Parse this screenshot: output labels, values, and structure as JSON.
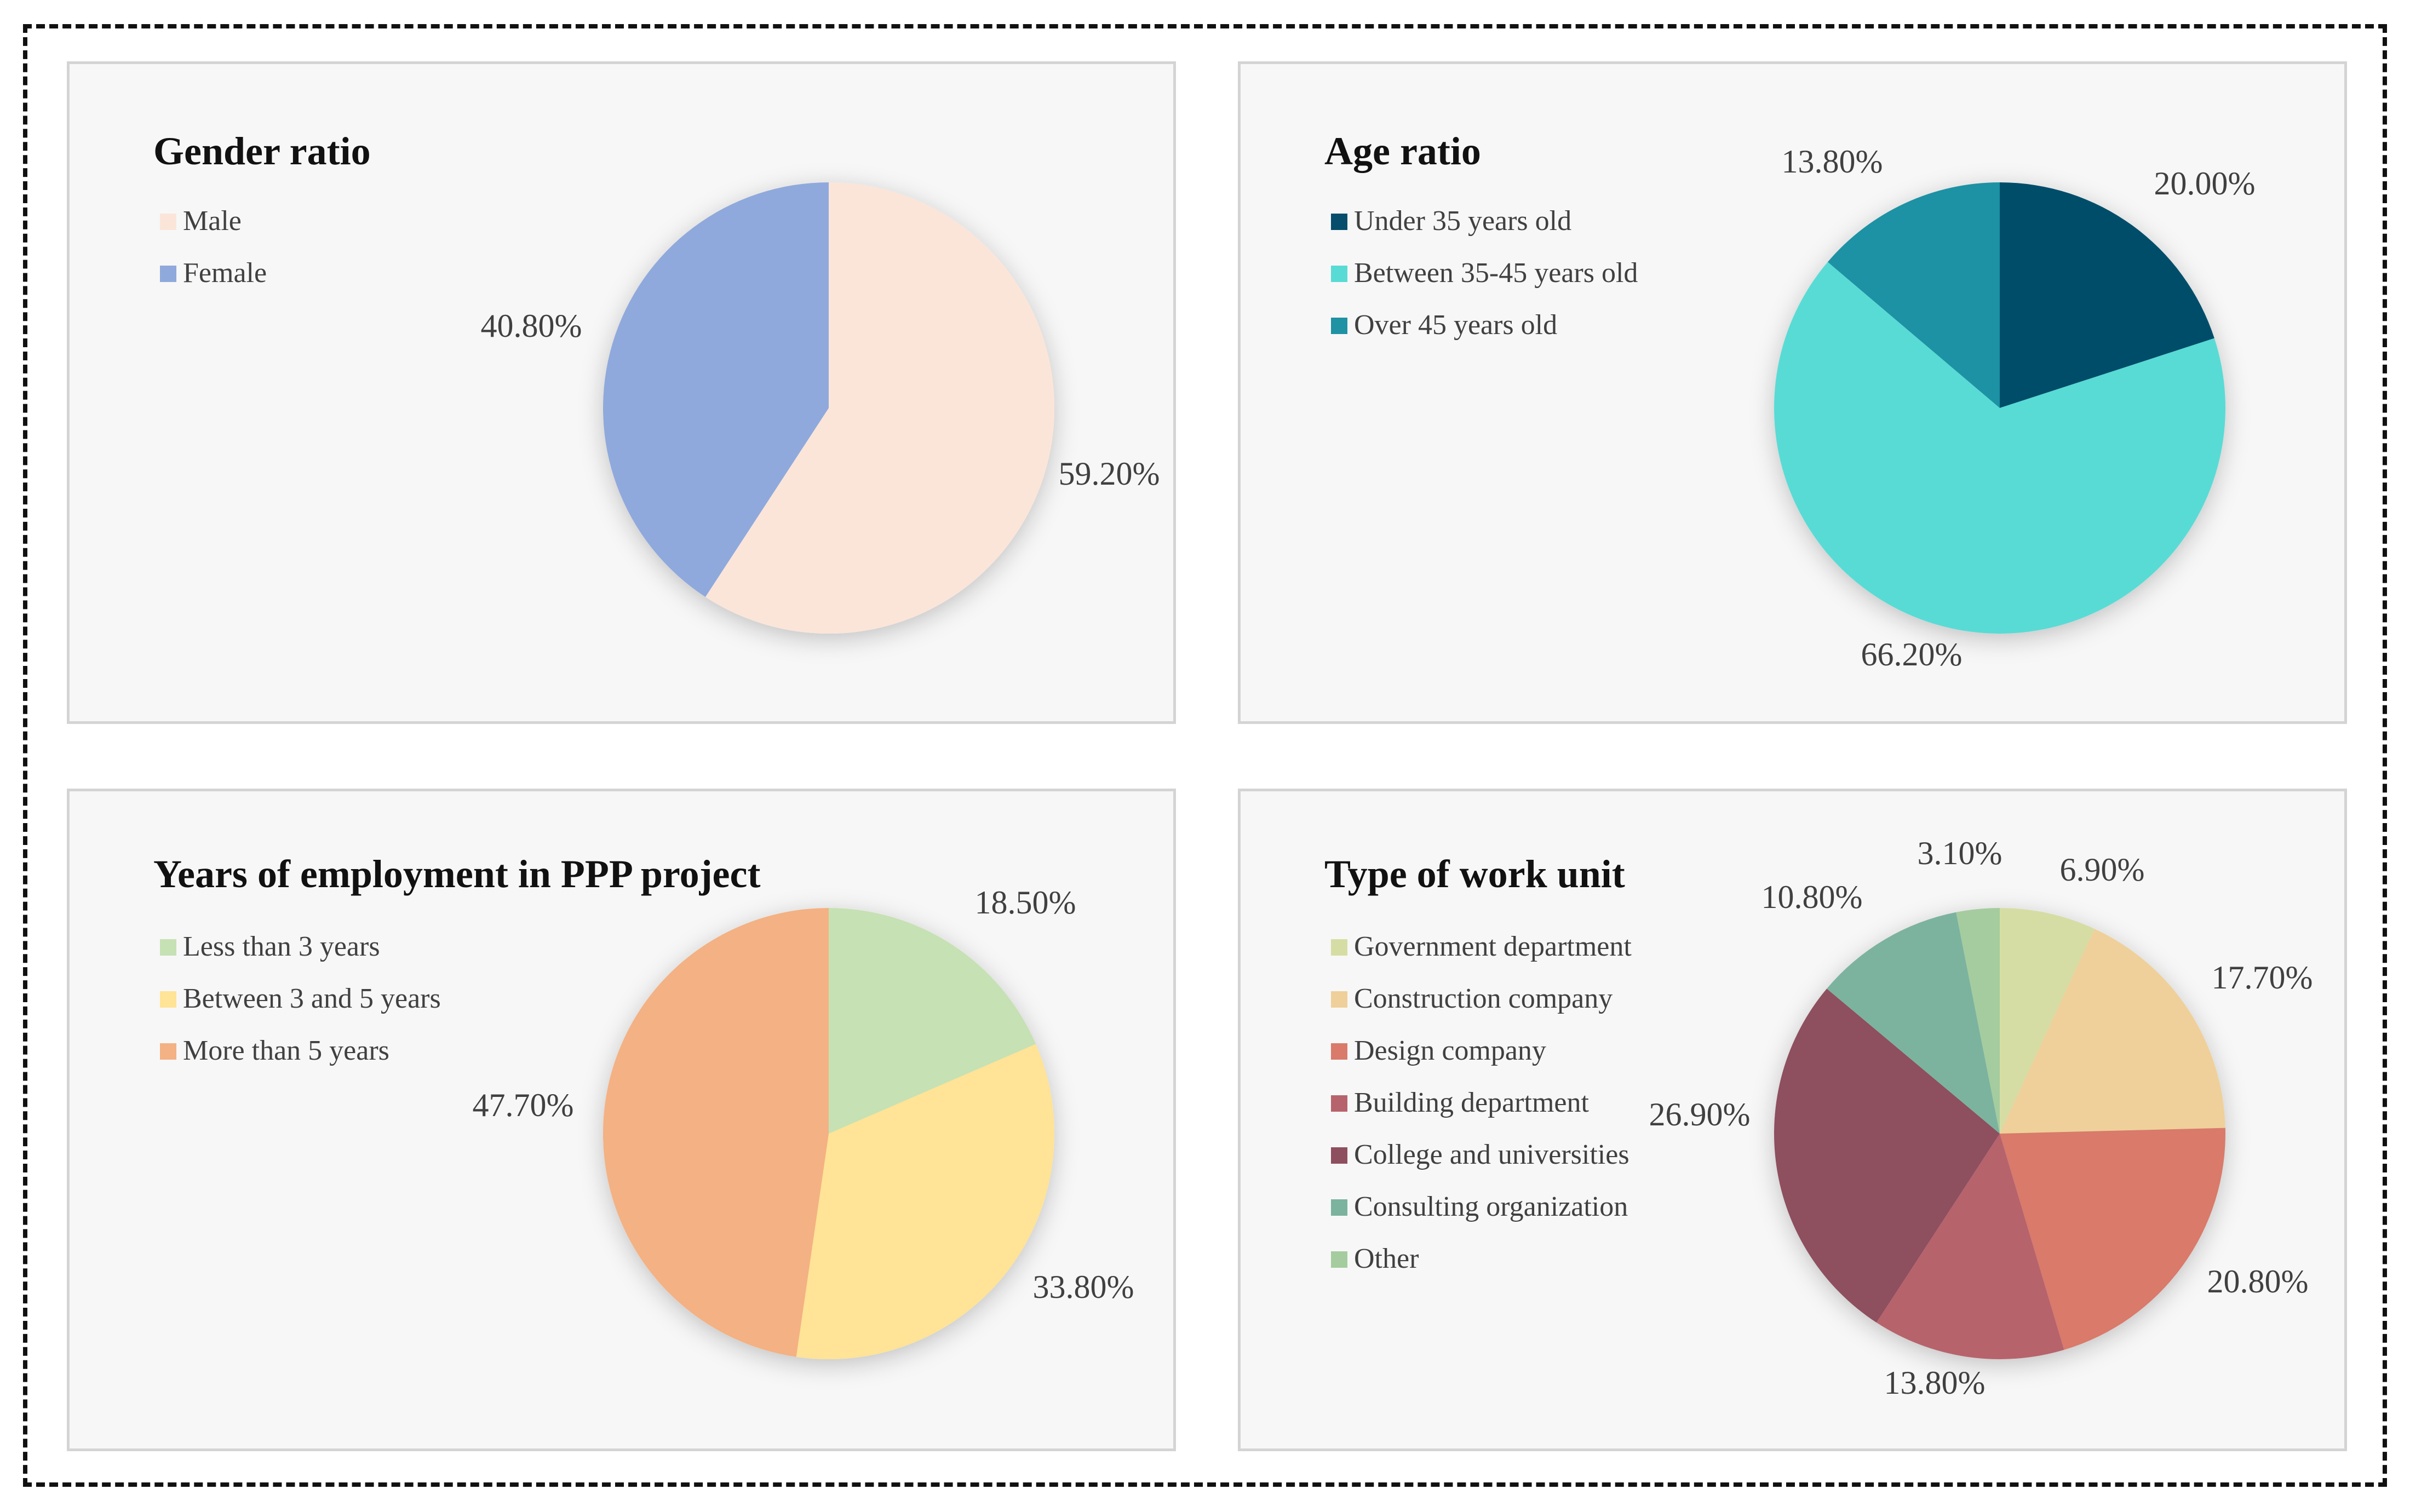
{
  "chart_data": [
    {
      "type": "pie",
      "title": "Gender ratio",
      "categories": [
        "Male",
        "Female"
      ],
      "values": [
        59.2,
        40.8
      ],
      "labels": [
        "59.20%",
        "40.80%"
      ],
      "colors": [
        "#fbe5d9",
        "#8fa9dc"
      ],
      "legend": "top-left"
    },
    {
      "type": "pie",
      "title": "Age ratio",
      "categories": [
        "Under 35 years old",
        "Between 35-45 years old",
        "Over 45 years old"
      ],
      "values": [
        20.0,
        66.2,
        13.8
      ],
      "labels": [
        "20.00%",
        "66.20%",
        "13.80%"
      ],
      "colors": [
        "#064e6b",
        "#58dbd5",
        "#1f92a4"
      ],
      "legend": "top-left"
    },
    {
      "type": "pie",
      "title": "Years of employment in PPP project",
      "categories": [
        "Less than 3 years",
        "Between 3 and 5 years",
        "More than 5 years"
      ],
      "values": [
        18.5,
        33.8,
        47.7
      ],
      "labels": [
        "18.50%",
        "33.80%",
        "47.70%"
      ],
      "colors": [
        "#c6e1b4",
        "#ffe396",
        "#f4b183"
      ],
      "legend": "top-left"
    },
    {
      "type": "pie",
      "title": "Type of work unit",
      "categories": [
        "Government department",
        "Construction company",
        "Design company",
        "Building department",
        "College and universities",
        "Consulting organization",
        "Other"
      ],
      "values": [
        6.9,
        17.7,
        20.8,
        13.8,
        26.9,
        10.8,
        3.1
      ],
      "labels": [
        "6.90%",
        "17.70%",
        "20.80%",
        "13.80%",
        "26.90%",
        "10.80%",
        "3.10%"
      ],
      "colors": [
        "#d6dda4",
        "#efd09a",
        "#d97a6b",
        "#b7636c",
        "#8e505f",
        "#7bb39f",
        "#a5cc9f"
      ],
      "legend": "top-left"
    }
  ]
}
